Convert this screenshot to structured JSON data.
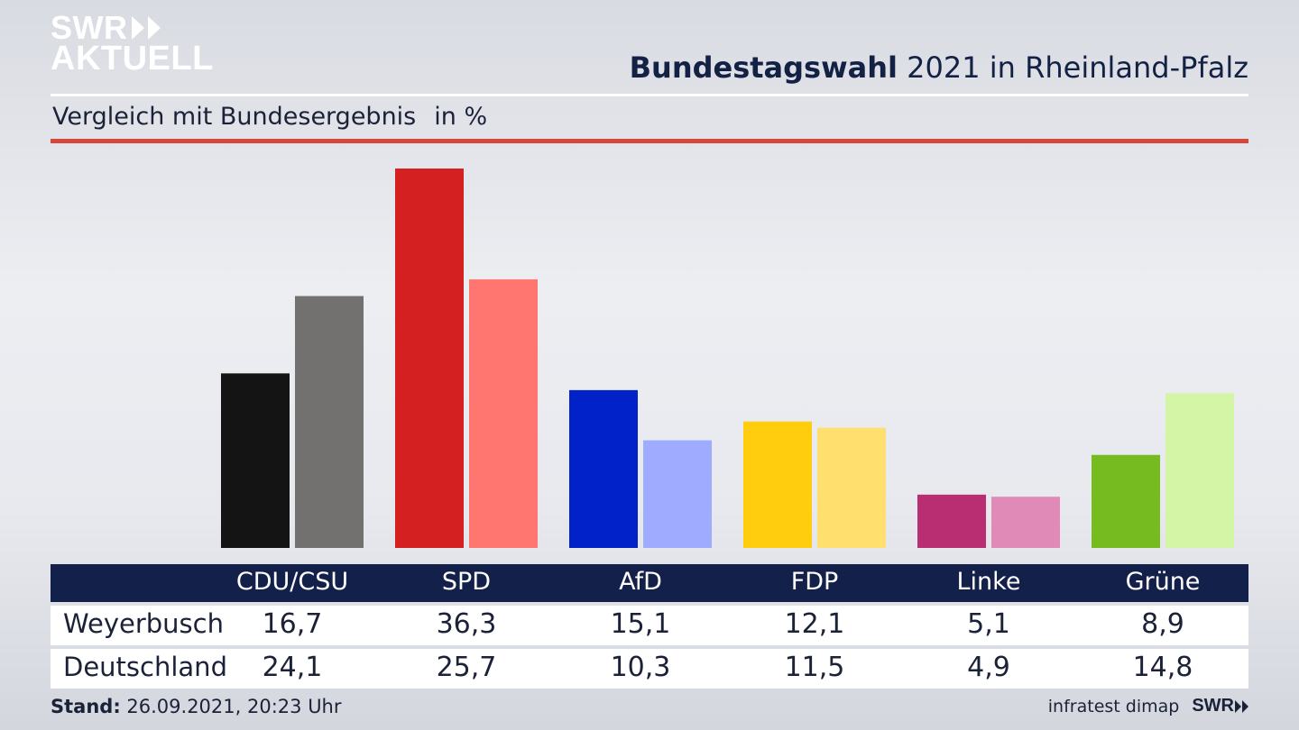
{
  "brand": {
    "logo_line1": "SWR",
    "logo_line2": "AKTUELL",
    "footer_logo": "SWR"
  },
  "header": {
    "title_bold": "Bundestagswahl",
    "title_rest": "2021 in Rheinland-Pfalz",
    "subtitle": "Vergleich mit Bundesergebnis",
    "unit": "in %"
  },
  "footer": {
    "stand_label": "Stand:",
    "stand_value": "26.09.2021, 20:23 Uhr",
    "source": "infratest dimap"
  },
  "colors": {
    "primary": [
      "#141414",
      "#d42020",
      "#0022c8",
      "#ffcc0e",
      "#b92d72",
      "#76bc20"
    ],
    "secondary": [
      "#737170",
      "#ff7570",
      "#9eabff",
      "#ffe06e",
      "#e08ab8",
      "#d4f5a6"
    ],
    "table_header": "#13204a",
    "rule": "#d5473a"
  },
  "chart_data": {
    "type": "bar",
    "categories": [
      "CDU/CSU",
      "SPD",
      "AfD",
      "FDP",
      "Linke",
      "Grüne"
    ],
    "series": [
      {
        "name": "Weyerbusch",
        "values": [
          16.7,
          36.3,
          15.1,
          12.1,
          5.1,
          8.9
        ]
      },
      {
        "name": "Deutschland",
        "values": [
          24.1,
          25.7,
          10.3,
          11.5,
          4.9,
          14.8
        ]
      }
    ],
    "value_labels": [
      [
        "16,7",
        "36,3",
        "15,1",
        "12,1",
        "5,1",
        "8,9"
      ],
      [
        "24,1",
        "25,7",
        "10,3",
        "11,5",
        "4,9",
        "14,8"
      ]
    ],
    "title": "Bundestagswahl 2021 in Rheinland-Pfalz",
    "subtitle": "Vergleich mit Bundesergebnis",
    "ylabel": "in %",
    "ylim": [
      0,
      36.3
    ],
    "grid": false
  }
}
